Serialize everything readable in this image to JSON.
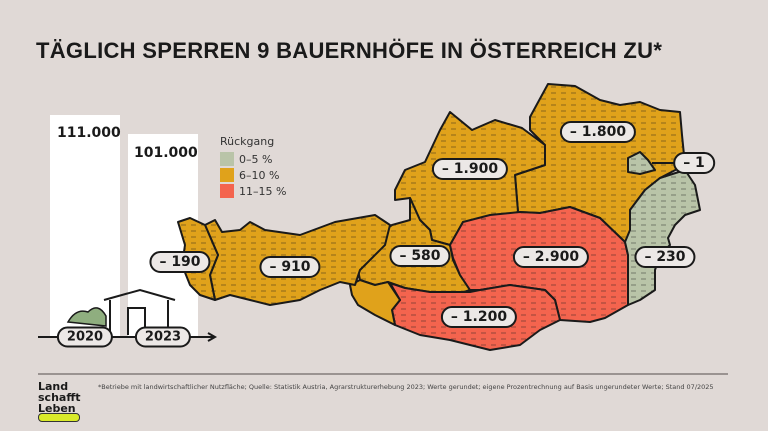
{
  "title": "TÄGLICH SPERREN 9 BAUERNHÖFE IN ÖSTERREICH ZU*",
  "bars": [
    {
      "year": "2020",
      "value": "111.000",
      "number": 111000
    },
    {
      "year": "2023",
      "value": "101.000",
      "number": 101000
    }
  ],
  "legend": {
    "title": "Rückgang",
    "items": [
      {
        "label": "0–5 %",
        "color": "#b9c4a8"
      },
      {
        "label": "6–10 %",
        "color": "#e0a21b"
      },
      {
        "label": "11–15 %",
        "color": "#f4644e"
      }
    ]
  },
  "regions": [
    {
      "name": "Vorarlberg",
      "label": "– 190",
      "category": "6–10 %"
    },
    {
      "name": "Tirol",
      "label": "– 910",
      "category": "6–10 %"
    },
    {
      "name": "Salzburg",
      "label": "– 580",
      "category": "6–10 %"
    },
    {
      "name": "Oberösterreich",
      "label": "– 1.900",
      "category": "6–10 %"
    },
    {
      "name": "Niederösterreich",
      "label": "– 1.800",
      "category": "6–10 %"
    },
    {
      "name": "Wien",
      "label": "– 1",
      "category": "0–5 %"
    },
    {
      "name": "Burgenland",
      "label": "– 230",
      "category": "0–5 %"
    },
    {
      "name": "Steiermark",
      "label": "– 2.900",
      "category": "11–15 %"
    },
    {
      "name": "Kärnten",
      "label": "– 1.200",
      "category": "11–15 %"
    }
  ],
  "footnote": "*Betriebe mit landwirtschaftlicher Nutzfläche; Quelle: Statistik Austria, Agrarstrukturerhebung 2023; Werte gerundet; eigene Prozentrechnung auf Basis ungerundeter Werte; Stand 07/2025",
  "logo": {
    "line1": "Land",
    "line2": "schafft",
    "line3": "Leben"
  }
}
